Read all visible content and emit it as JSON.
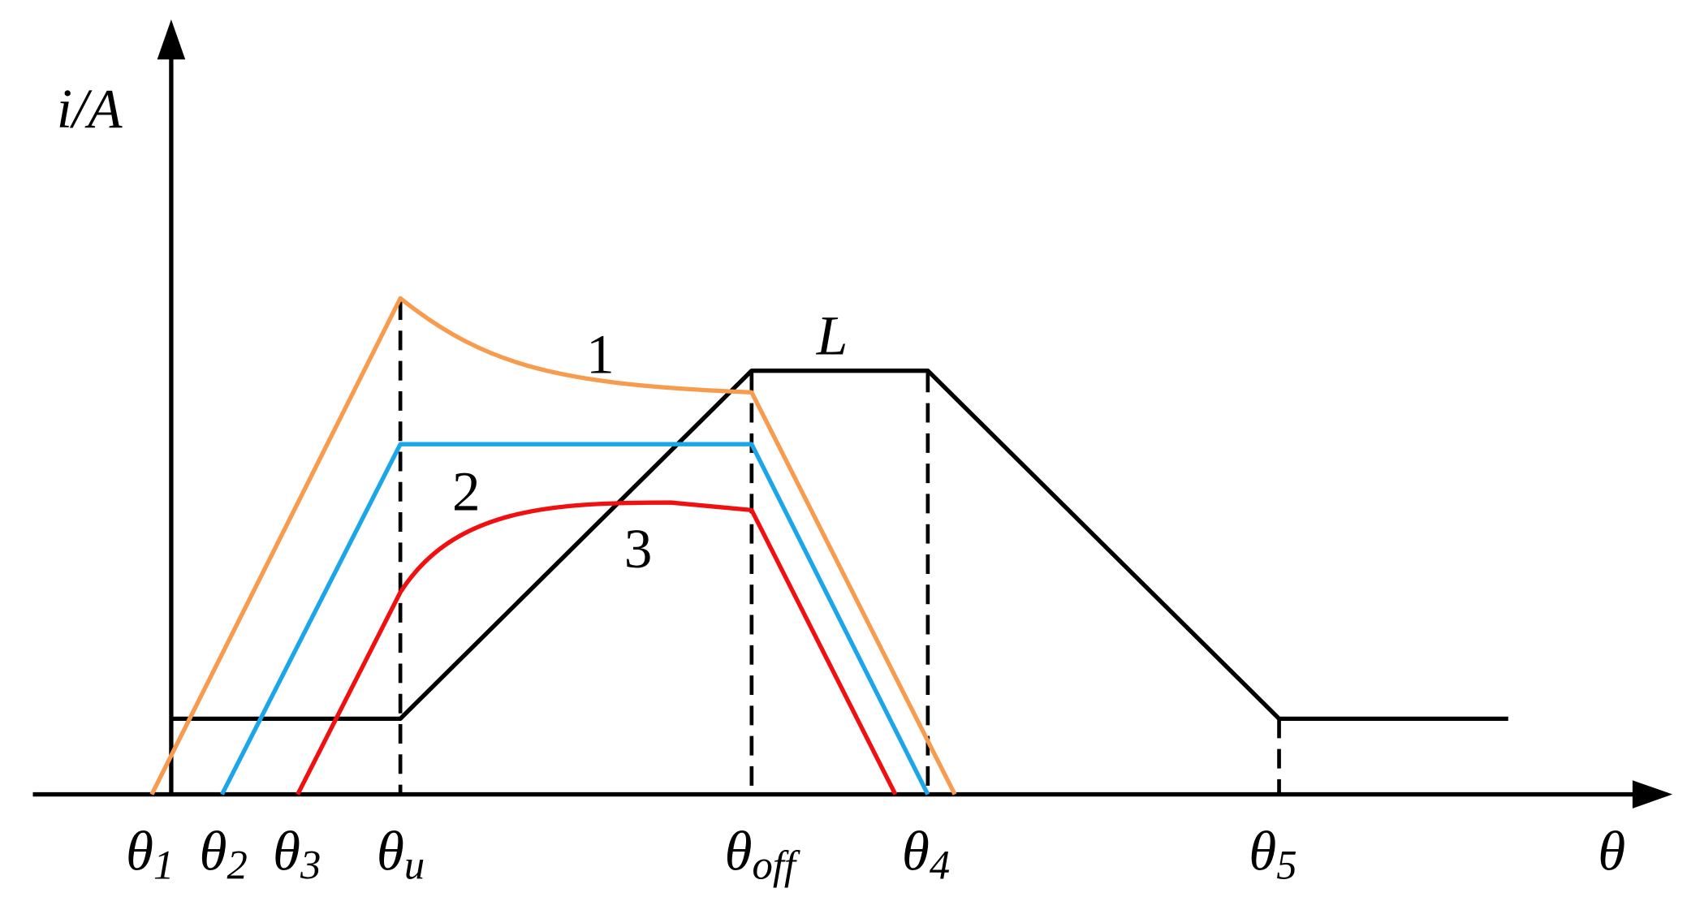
{
  "axes": {
    "y_label": "i/A",
    "x_label": "θ"
  },
  "angle_labels": [
    {
      "symbol": "θ",
      "subscript": "1"
    },
    {
      "symbol": "θ",
      "subscript": "2"
    },
    {
      "symbol": "θ",
      "subscript": "3"
    },
    {
      "symbol": "θ",
      "subscript": "u"
    },
    {
      "symbol": "θ",
      "subscript": "off"
    },
    {
      "symbol": "θ",
      "subscript": "4"
    },
    {
      "symbol": "θ",
      "subscript": "5"
    }
  ],
  "curve_labels": [
    "1",
    "2",
    "3"
  ],
  "inductance_label": "L"
}
